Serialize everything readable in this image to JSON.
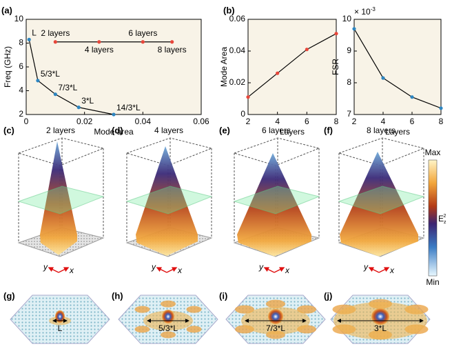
{
  "chart_data": [
    {
      "type": "line",
      "label": "(a)",
      "xlabel": "Mode area",
      "ylabel": "Freq (GHz)",
      "xlim": [
        0,
        0.06
      ],
      "xticks": [
        0,
        0.02,
        0.04,
        0.06
      ],
      "ylim": [
        2,
        10
      ],
      "yticks": [
        2,
        4,
        6,
        8,
        10
      ],
      "background": "#f8f3e7",
      "line_color": "#000000",
      "series": [
        {
          "color": "#2e86c1",
          "x": [
            0.001,
            0.004,
            0.01,
            0.018,
            0.03
          ],
          "values": [
            8.3,
            4.85,
            3.7,
            2.6,
            2.0
          ],
          "point_labels": [
            "L",
            "5/3*L",
            "7/3*L",
            "3*L",
            "14/3*L"
          ]
        },
        {
          "color": "#e8473b",
          "x": [
            0.01,
            0.025,
            0.04,
            0.05
          ],
          "values": [
            8.1,
            8.1,
            8.1,
            8.1
          ],
          "point_labels": [
            "2 layers",
            "4 layers",
            "6 layers",
            "8 layers"
          ]
        }
      ]
    },
    {
      "type": "line",
      "label": "(b)",
      "xlabel": "Layers",
      "ylabel": "Mode Area",
      "xlim": [
        2,
        8
      ],
      "xticks": [
        2,
        4,
        6,
        8
      ],
      "ylim": [
        0,
        0.06
      ],
      "yticks": [
        0,
        0.02,
        0.04,
        0.06
      ],
      "background": "#f8f3e7",
      "line_color": "#000000",
      "x": [
        2,
        4,
        6,
        8
      ],
      "series": [
        {
          "color": "#e8473b",
          "values": [
            0.011,
            0.026,
            0.041,
            0.051
          ]
        }
      ]
    },
    {
      "type": "line",
      "xlabel": "Layers",
      "ylabel": "FSR",
      "multiplier": {
        "base": "× 10",
        "exponent": "-3"
      },
      "xlim": [
        2,
        8
      ],
      "xticks": [
        2,
        4,
        6,
        8
      ],
      "ylim": [
        7,
        10
      ],
      "yticks": [
        7,
        8,
        9,
        10
      ],
      "background": "#f8f3e7",
      "line_color": "#000000",
      "x": [
        2,
        4,
        6,
        8
      ],
      "series": [
        {
          "color": "#2e86c1",
          "values": [
            9.7,
            8.15,
            7.55,
            7.2
          ]
        }
      ]
    }
  ],
  "field_panels": [
    {
      "label": "(c)",
      "title": "2 layers"
    },
    {
      "label": "(d)",
      "title": "4 layers"
    },
    {
      "label": "(e)",
      "title": "6 layers"
    },
    {
      "label": "(f)",
      "title": "8 layers"
    }
  ],
  "axis_names": {
    "x": "x",
    "y": "y"
  },
  "colorbar": {
    "max": "Max",
    "min": "Min",
    "quantity": {
      "base": "E",
      "sub": "z",
      "sup": "2"
    }
  },
  "mode_panels": [
    {
      "label": "(g)",
      "size": "L"
    },
    {
      "label": "(h)",
      "size": "5/3*L"
    },
    {
      "label": "(i)",
      "size": "7/3*L"
    },
    {
      "label": "(j)",
      "size": "3*L"
    }
  ]
}
